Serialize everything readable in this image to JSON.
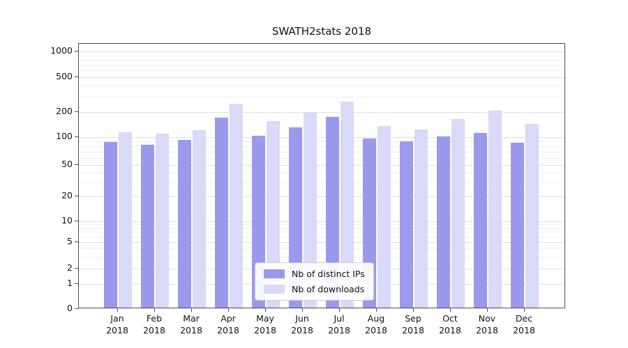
{
  "chart_data": {
    "type": "bar",
    "title": "SWATH2stats 2018",
    "categories": [
      "Jan 2018",
      "Feb 2018",
      "Mar 2018",
      "Apr 2018",
      "May 2018",
      "Jun 2018",
      "Jul 2018",
      "Aug 2018",
      "Sep 2018",
      "Oct 2018",
      "Nov 2018",
      "Dec 2018"
    ],
    "series": [
      {
        "name": "Nb of distinct IPs",
        "color": "#9999ee",
        "values": [
          86,
          80,
          90,
          165,
          101,
          125,
          168,
          93,
          87,
          99,
          108,
          84
        ]
      },
      {
        "name": "Nb of downloads",
        "color": "#d9d9f8",
        "values": [
          110,
          107,
          116,
          240,
          150,
          190,
          255,
          130,
          120,
          160,
          200,
          140
        ]
      }
    ],
    "yscale": "symlog",
    "y_ticks": [
      0,
      1,
      2,
      5,
      10,
      20,
      50,
      100,
      200,
      500,
      1000
    ],
    "ylim": [
      0,
      1000
    ],
    "grid": true,
    "legend_position": "lower center"
  }
}
